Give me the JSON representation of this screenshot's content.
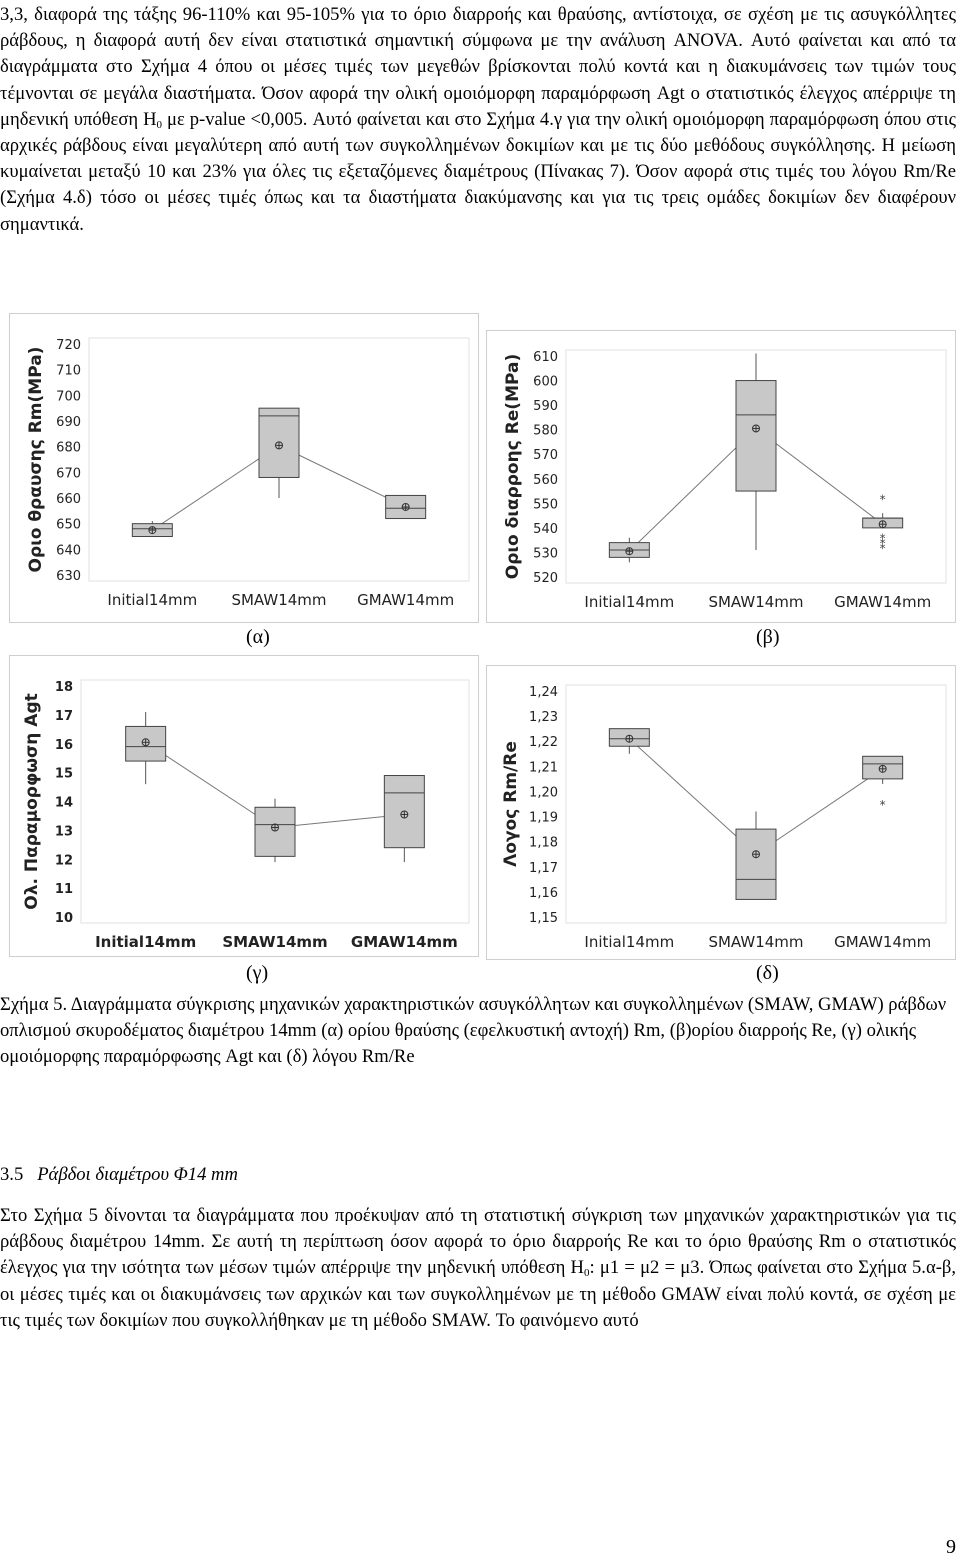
{
  "top_paragraph": {
    "text_a": "3,3, διαφορά της τάξης 96-110% και 95-105% για το όριο διαρροής και θραύσης, αντίστοιχα, σε σχέση με τις ασυγκόλλητες ράβδους, η διαφορά αυτή δεν είναι στατιστικά σημαντική σύμφωνα με την ανάλυση ANOVA. Αυτό φαίνεται και από τα διαγράμματα στο Σχήμα 4 όπου οι μέσες τιμές των μεγεθών βρίσκονται πολύ κοντά και η διακυμάνσεις των τιμών τους τέμνονται σε μεγάλα διαστήματα. Όσον αφορά την ολική ομοιόμορφη παραμόρφωση Agt ο στατιστικός έλεγχος απέρριψε τη μηδενική υπόθεση H",
    "sub": "0",
    "text_b": " με p-value <0,005. Αυτό φαίνεται και στο Σχήμα 4.γ για την ολική ομοιόμορφη παραμόρφωση όπου στις αρχικές ράβδους είναι μεγαλύτερη από αυτή των συγκολλημένων δοκιμίων και με τις δύο μεθόδους συγκόλλησης. Η μείωση κυμαίνεται μεταξύ 10 και 23% για όλες τις εξεταζόμενες διαμέτρους (Πίνακας 7). Όσον αφορά στις τιμές του λόγου Rm/Re (Σχήμα 4.δ) τόσο οι μέσες τιμές όπως και τα διαστήματα διακύμανσης και για τις τρεις ομάδες δοκιμίων δεν διαφέρουν σημαντικά."
  },
  "panel_labels": [
    "(α)",
    "(β)",
    "(γ)",
    "(δ)"
  ],
  "chart_data": [
    {
      "type": "boxplot",
      "ylabel": "Οριο θραυσης Rm(MPa)",
      "categories": [
        "Initial14mm",
        "SMAW14mm",
        "GMAW14mm"
      ],
      "yticks": [
        "630",
        "640",
        "650",
        "660",
        "670",
        "680",
        "690",
        "700",
        "710",
        "720"
      ],
      "ylim": [
        630,
        720
      ],
      "boxes": [
        {
          "min": 645,
          "q1": 645,
          "median": 648,
          "q3": 650,
          "max": 651
        },
        {
          "min": 660,
          "q1": 668,
          "median": 692,
          "q3": 695,
          "max": 695
        },
        {
          "min": 652,
          "q1": 652,
          "median": 656,
          "q3": 661,
          "max": 661
        }
      ],
      "means": [
        647.5,
        680.5,
        656.5
      ],
      "outliers": [
        [],
        [],
        []
      ]
    },
    {
      "type": "boxplot",
      "ylabel": "Οριο διαρροης Re(MPa)",
      "categories": [
        "Initial14mm",
        "SMAW14mm",
        "GMAW14mm"
      ],
      "yticks": [
        "520",
        "530",
        "540",
        "550",
        "560",
        "570",
        "580",
        "590",
        "600",
        "610"
      ],
      "ylim": [
        520,
        610
      ],
      "boxes": [
        {
          "min": 526,
          "q1": 528,
          "median": 531,
          "q3": 534,
          "max": 536
        },
        {
          "min": 531,
          "q1": 555,
          "median": 586,
          "q3": 600,
          "max": 611
        },
        {
          "min": 540,
          "q1": 540,
          "median": 544,
          "q3": 544,
          "max": 546
        }
      ],
      "means": [
        530.5,
        580.5,
        541.5
      ],
      "outliers": [
        [],
        [],
        [
          552,
          536,
          534,
          532
        ]
      ]
    },
    {
      "type": "boxplot",
      "ylabel": "Ολ. Παραμορφωση Agt",
      "categories": [
        "Initial14mm",
        "SMAW14mm",
        "GMAW14mm"
      ],
      "yticks": [
        "10",
        "11",
        "12",
        "13",
        "14",
        "15",
        "16",
        "17",
        "18"
      ],
      "ylim": [
        10,
        18
      ],
      "boxes": [
        {
          "min": 14.6,
          "q1": 15.4,
          "median": 15.9,
          "q3": 16.6,
          "max": 17.1
        },
        {
          "min": 11.9,
          "q1": 12.1,
          "median": 13.2,
          "q3": 13.8,
          "max": 14.1
        },
        {
          "min": 11.9,
          "q1": 12.4,
          "median": 14.3,
          "q3": 14.9,
          "max": 14.9
        }
      ],
      "means": [
        16.05,
        13.1,
        13.55
      ],
      "outliers": [
        [],
        [],
        []
      ]
    },
    {
      "type": "boxplot",
      "ylabel": "Λογος Rm/Re",
      "categories": [
        "Initial14mm",
        "SMAW14mm",
        "GMAW14mm"
      ],
      "yticks": [
        "1,15",
        "1,16",
        "1,17",
        "1,18",
        "1,19",
        "1,20",
        "1,21",
        "1,22",
        "1,23",
        "1,24"
      ],
      "ylim": [
        1.15,
        1.24
      ],
      "boxes": [
        {
          "min": 1.215,
          "q1": 1.218,
          "median": 1.221,
          "q3": 1.225,
          "max": 1.225
        },
        {
          "min": 1.157,
          "q1": 1.157,
          "median": 1.165,
          "q3": 1.185,
          "max": 1.192
        },
        {
          "min": 1.203,
          "q1": 1.205,
          "median": 1.211,
          "q3": 1.214,
          "max": 1.214
        }
      ],
      "means": [
        1.221,
        1.175,
        1.209
      ],
      "outliers": [
        [],
        [],
        [
          1.195
        ]
      ]
    }
  ],
  "caption": {
    "label": "Σχήμα 5.",
    "text": " Διαγράμματα σύγκρισης μηχανικών χαρακτηριστικών ασυγκόλλητων και συγκολλημένων (SMAW, GMAW) ράβδων οπλισμού σκυροδέματος διαμέτρου 14mm (α) ορίου θραύσης (εφελκυστική αντοχή) Rm, (β)ορίου διαρροής Re, (γ) ολικής ομοιόμορφης παραμόρφωσης Agt και (δ) λόγου Rm/Re"
  },
  "section": {
    "number": "3.5",
    "title": "Ράβδοι διαμέτρου Φ14 mm"
  },
  "bottom_paragraph": {
    "text_a": "Στο Σχήμα 5 δίνονται τα διαγράμματα που προέκυψαν από τη στατιστική σύγκριση των μηχανικών χαρακτηριστικών για τις ράβδους διαμέτρου 14mm. Σε αυτή τη περίπτωση όσον αφορά το όριο διαρροής Re και το όριο θραύσης Rm ο στατιστικός έλεγχος για την ισότητα των μέσων τιμών απέρριψε την μηδενική υπόθεση H",
    "sub": "0",
    "text_b": ": μ1 = μ2 = μ3. Όπως φαίνεται στο Σχήμα 5.α-β, οι μέσες τιμές και οι διακυμάνσεις των αρχικών και των συγκολλημένων με τη μέθοδο GMAW είναι πολύ κοντά, σε σχέση με τις τιμές των δοκιμίων που συγκολλήθηκαν με τη μέθοδο SMAW. Το φαινόμενο αυτό"
  },
  "page_number": "9"
}
